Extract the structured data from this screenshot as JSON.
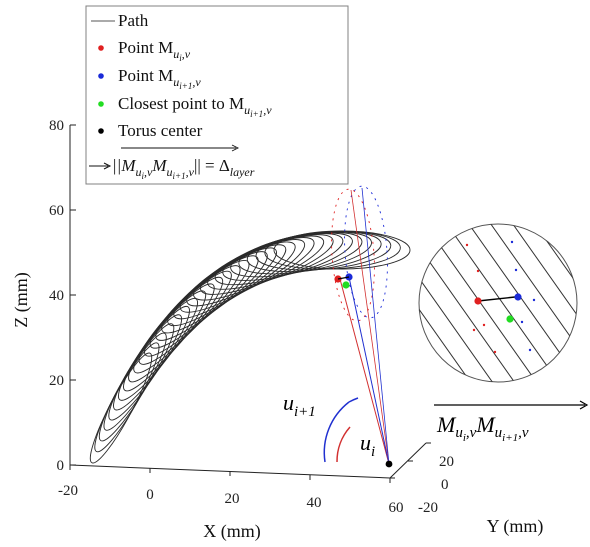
{
  "colors": {
    "path": "#2b2b2b",
    "point_u_i": "#e02020",
    "point_u_i1": "#1a2ad8",
    "closest_point": "#22dd22",
    "torus_center": "#000000",
    "arc_u_i": "#d23030",
    "arc_u_i1": "#2030d0"
  },
  "legend": {
    "path": "Path",
    "point_ui_prefix": "Point M",
    "point_ui_sub": "u",
    "point_ui_subsub": "i",
    "point_ui_tail": ",v",
    "point_ui1_prefix": "Point M",
    "point_ui1_sub": "u",
    "point_ui1_subsub": "i+1",
    "point_ui1_tail": ",v",
    "closest_prefix": "Closest point to M",
    "closest_sub": "u",
    "closest_subsub": "i+1",
    "closest_tail": ",v",
    "center": "Torus center",
    "arrow_eq_lhs": "||M",
    "arrow_eq_rhs": "|| = Δ",
    "arrow_eq_rhs_sub": "layer"
  },
  "axes": {
    "xlabel": "X (mm)",
    "ylabel": "Y (mm)",
    "zlabel": "Z (mm)",
    "x_ticks": [
      "-20",
      "0",
      "20",
      "40",
      "60"
    ],
    "y_ticks": [
      "20",
      "0",
      "-20"
    ],
    "z_ticks": [
      "0",
      "20",
      "40",
      "60",
      "80"
    ]
  },
  "annotations": {
    "u_i1": "u",
    "u_i1_sub": "i+1",
    "u_i": "u",
    "u_i_sub": "i",
    "vector_label_main": "M",
    "vector_label_sub1": "u",
    "vector_label_subsub1": "i",
    "vector_label_tail1": ",v",
    "vector_label_main2": "M",
    "vector_label_sub2": "u",
    "vector_label_subsub2": "i+1",
    "vector_label_tail2": ",v"
  }
}
